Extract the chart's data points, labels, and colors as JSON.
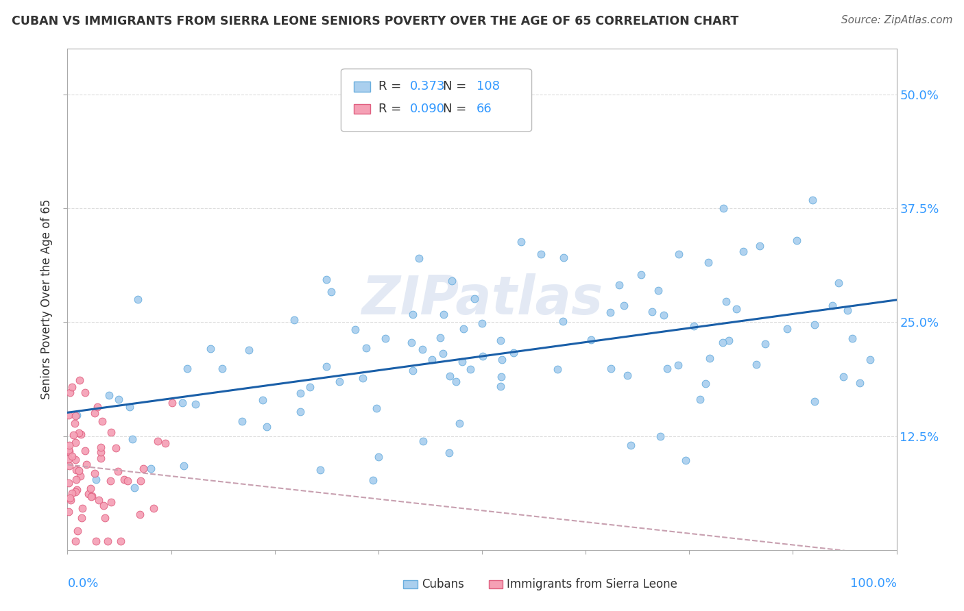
{
  "title": "CUBAN VS IMMIGRANTS FROM SIERRA LEONE SENIORS POVERTY OVER THE AGE OF 65 CORRELATION CHART",
  "source": "Source: ZipAtlas.com",
  "ylabel": "Seniors Poverty Over the Age of 65",
  "yticks": [
    0.125,
    0.25,
    0.375,
    0.5
  ],
  "ytick_labels": [
    "12.5%",
    "25.0%",
    "37.5%",
    "50.0%"
  ],
  "xlim": [
    0.0,
    1.0
  ],
  "ylim": [
    0.0,
    0.55
  ],
  "cuban_color": "#aacfee",
  "cuban_edge": "#6aaede",
  "sierra_color": "#f5a0b5",
  "sierra_edge": "#e06080",
  "regression_line_color": "#1a5fa8",
  "regression_dashed_color": "#c8a0b0",
  "legend_R_cuban": "0.373",
  "legend_N_cuban": "108",
  "legend_R_sierra": "0.090",
  "legend_N_sierra": "66",
  "watermark": "ZIPatlas",
  "R_cuban": 0.373,
  "N_cuban": 108,
  "R_sierra": 0.09,
  "N_sierra": 66,
  "legend_number_color": "#3399ff",
  "text_color": "#333333",
  "source_color": "#666666",
  "grid_color": "#dddddd",
  "spine_color": "#aaaaaa"
}
